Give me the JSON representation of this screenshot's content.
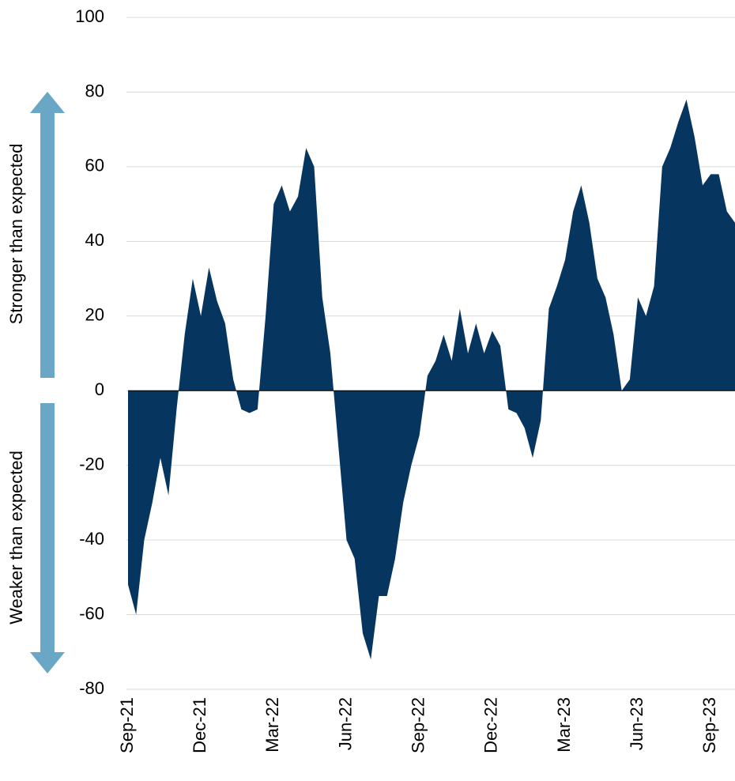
{
  "chart_data": {
    "type": "area",
    "annotations": [
      "Stronger than expected",
      "Weaker than expected"
    ],
    "categories": [
      "Sep-21",
      null,
      null,
      null,
      null,
      null,
      null,
      null,
      null,
      "Dec-21",
      null,
      null,
      null,
      null,
      null,
      null,
      null,
      null,
      "Mar-22",
      null,
      null,
      null,
      null,
      null,
      null,
      null,
      null,
      "Jun-22",
      null,
      null,
      null,
      null,
      null,
      null,
      null,
      null,
      "Sep-22",
      null,
      null,
      null,
      null,
      null,
      null,
      null,
      null,
      "Dec-22",
      null,
      null,
      null,
      null,
      null,
      null,
      null,
      null,
      "Mar-23",
      null,
      null,
      null,
      null,
      null,
      null,
      null,
      null,
      "Jun-23",
      null,
      null,
      null,
      null,
      null,
      null,
      null,
      null,
      "Sep-23",
      null,
      null,
      null
    ],
    "values": [
      -52,
      -60,
      -40,
      -30,
      -18,
      -28,
      -5,
      15,
      30,
      20,
      33,
      24,
      18,
      3,
      -5,
      -6,
      -5,
      20,
      50,
      55,
      48,
      52,
      65,
      60,
      25,
      10,
      -15,
      -40,
      -45,
      -65,
      -72,
      -55,
      -55,
      -45,
      -30,
      -20,
      -12,
      4,
      8,
      15,
      8,
      22,
      10,
      18,
      10,
      16,
      12,
      -5,
      -6,
      -10,
      -18,
      -8,
      22,
      28,
      35,
      48,
      55,
      45,
      30,
      25,
      15,
      0,
      3,
      25,
      20,
      28,
      60,
      65,
      72,
      78,
      68,
      55,
      58,
      58,
      48,
      45
    ],
    "color": "#06365f",
    "arrow_color": "#6aa7c7",
    "ylim": [
      -80,
      100
    ],
    "yticks": [
      -80,
      -60,
      -40,
      -20,
      0,
      20,
      40,
      60,
      80,
      100
    ],
    "grid": true
  }
}
